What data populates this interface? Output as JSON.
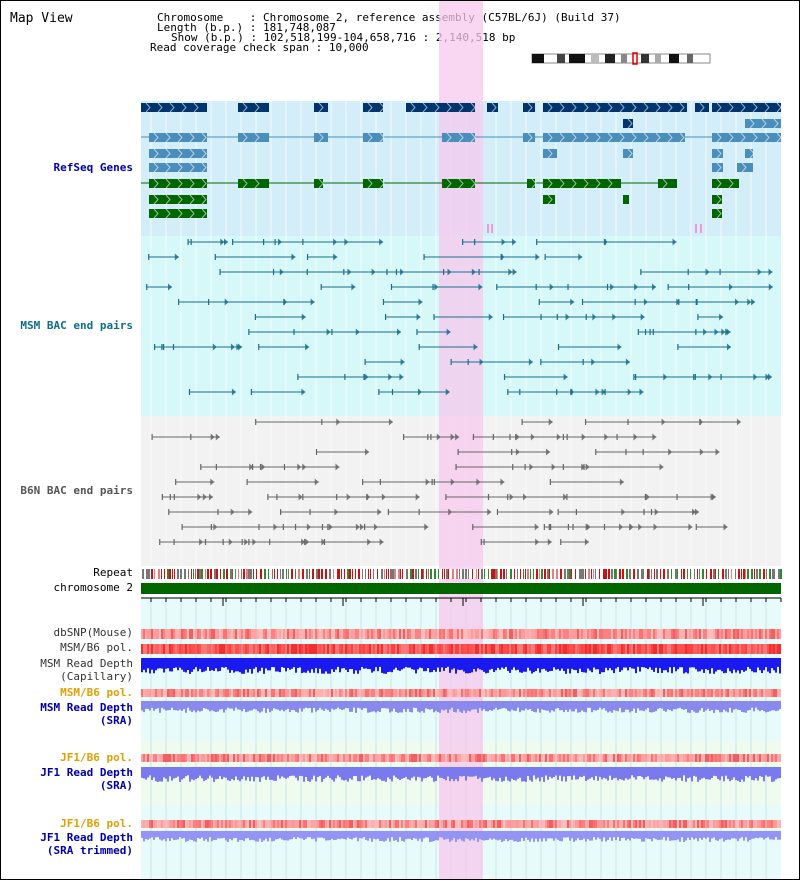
{
  "title": "Map View",
  "info": {
    "chromosome_key": "Chromosome",
    "chromosome_val": "Chromosome 2, reference assembly (C57BL/6J) (Build 37)",
    "length_key": "Length (b.p.)",
    "length_val": "181,748,087",
    "show_key": "Show (b.p.)",
    "show_val": "102,518,199-104,658,716 : 2,140,518 bp",
    "span_key": "Read coverage check span",
    "span_val": "10,000"
  },
  "tracks": {
    "refseq": "RefSeq Genes",
    "msm_bac": "MSM BAC end pairs",
    "b6n_bac": "B6N BAC end pairs",
    "repeat": "Repeat",
    "chromosome": "chromosome 2",
    "dbsnp": "dbSNP(Mouse)",
    "msm_b6_pol_1": "MSM/B6 pol.",
    "msm_depth_cap_1": "MSM Read Depth",
    "msm_depth_cap_2": "(Capillary)",
    "msm_b6_pol_2": "MSM/B6 pol.",
    "msm_depth_sra_1": "MSM Read Depth",
    "msm_depth_sra_2": "(SRA)",
    "jf1_b6_pol_1": "JF1/B6 pol.",
    "jf1_depth_sra_1": "JF1 Read Depth",
    "jf1_depth_sra_2": "(SRA)",
    "jf1_b6_pol_2": "JF1/B6 pol.",
    "jf1_depth_trim_1": "JF1 Read Depth",
    "jf1_depth_trim_2": "(SRA trimmed)"
  },
  "axis": {
    "ticks": [
      "102800000",
      "103200000",
      "103600000",
      "104000000",
      "104400000"
    ]
  },
  "colors": {
    "highlight": "#f7c8ee",
    "refseq_bg": "#d4eef9",
    "msm_bg": "#d7f8f8",
    "b6n_bg": "#f2f2f2",
    "gene_dark": "#00346d",
    "gene_mid": "#4a8fbb",
    "gene_green": "#006600",
    "chromosome": "#006600"
  }
}
